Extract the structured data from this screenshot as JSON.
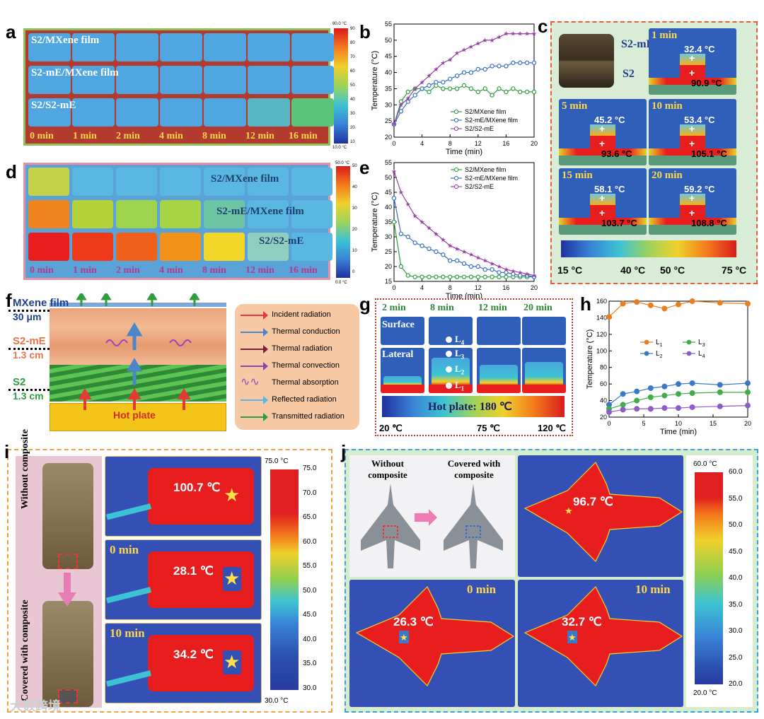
{
  "panel_a": {
    "label": "a",
    "rows": [
      "S2/MXene film",
      "S2-mE/MXene film",
      "S2/S2-mE"
    ],
    "times": [
      "0 min",
      "1 min",
      "2 min",
      "4 min",
      "8 min",
      "12 min",
      "16 min"
    ],
    "scale_max": "90.0 °C",
    "scale_min": "10.0 °C",
    "scale_ticks": [
      "90",
      "80",
      "70",
      "60",
      "50",
      "40",
      "30",
      "20",
      "10"
    ]
  },
  "panel_d": {
    "label": "d",
    "rows": [
      "S2/MXene film",
      "S2-mE/MXene film",
      "S2/S2-mE"
    ],
    "times": [
      "0 min",
      "1 min",
      "2 min",
      "4 min",
      "8 min",
      "12 min",
      "16 min"
    ],
    "scale_max": "50.0 °C",
    "scale_min": "0.0 °C",
    "scale_ticks": [
      "50",
      "40",
      "30",
      "20",
      "10",
      "0"
    ]
  },
  "panel_c": {
    "label": "c",
    "sample_top": "S2-mE",
    "sample_bottom": "S2",
    "cells": [
      {
        "time": "1 min",
        "top": "32.4 °C",
        "bottom": "90.9 °C"
      },
      {
        "time": "5 min",
        "top": "45.2 °C",
        "bottom": "93.6 °C"
      },
      {
        "time": "10 min",
        "top": "53.4 °C",
        "bottom": "105.1 °C"
      },
      {
        "time": "15 min",
        "top": "58.1 °C",
        "bottom": "103.7 °C"
      },
      {
        "time": "20 min",
        "top": "59.2 °C",
        "bottom": "108.8 °C"
      }
    ],
    "scale_labels": [
      "15 °C",
      "40 °C",
      "50 °C",
      "75 °C"
    ]
  },
  "panel_f": {
    "label": "f",
    "layers": [
      {
        "name": "MXene film",
        "thick": "30 μm"
      },
      {
        "name": "S2-mE",
        "thick": "1.3 cm"
      },
      {
        "name": "S2",
        "thick": "1.3 cm"
      }
    ],
    "hot_plate": "Hot plate",
    "legend": [
      {
        "text": "Incident radiation",
        "color": "#e53935"
      },
      {
        "text": "Thermal conduction",
        "color": "#4a86c8"
      },
      {
        "text": "Thermal radiation",
        "color": "#7b1f3f"
      },
      {
        "text": "Thermal convection",
        "color": "#8e44ad"
      },
      {
        "text": "Thermal absorption",
        "color": "#a040c0"
      },
      {
        "text": "Reflected radiation",
        "color": "#5ab4e5"
      },
      {
        "text": "Transmitted radiation",
        "color": "#2e9e3e"
      }
    ]
  },
  "panel_g": {
    "label": "g",
    "times": [
      "2 min",
      "8 min",
      "12 min",
      "20 min"
    ],
    "rows": [
      "Surface",
      "Lateral"
    ],
    "points": [
      "L",
      "L",
      "L",
      "L"
    ],
    "subs": [
      "4",
      "3",
      "2",
      "1"
    ],
    "plate": "Hot plate: 180 ℃",
    "scale_labels": [
      "20 ℃",
      "75 ℃",
      "120 ℃"
    ]
  },
  "panel_i": {
    "label": "i",
    "side_top": "Without composite",
    "side_bottom": "Covered with composite",
    "cells": [
      {
        "time": "",
        "temp": "100.7 ℃"
      },
      {
        "time": "0 min",
        "temp": "28.1 ℃"
      },
      {
        "time": "10 min",
        "temp": "34.2 ℃"
      }
    ],
    "scale_max": "75.0 °C",
    "scale_min": "30.0 °C",
    "scale_ticks": [
      "75.0",
      "70.0",
      "65.0",
      "60.0",
      "55.0",
      "50.0",
      "45.0",
      "40.0",
      "35.0",
      "30.0"
    ]
  },
  "panel_j": {
    "label": "j",
    "photo_left": "Without composite",
    "photo_right": "Covered with composite",
    "cells": [
      {
        "time": "",
        "temp": "96.7 ℃"
      },
      {
        "time": "0 min",
        "temp": "26.3 ℃"
      },
      {
        "time": "10 min",
        "temp": "32.7 ℃"
      }
    ],
    "scale_max": "60.0 °C",
    "scale_min": "20.0 °C",
    "scale_ticks": [
      "60.0",
      "55.0",
      "50.0",
      "45.0",
      "40.0",
      "35.0",
      "30.0",
      "25.0",
      "20.0"
    ]
  },
  "watermark": "大数跨境",
  "chart_data": [
    {
      "id": "b",
      "type": "line",
      "xlabel": "Time (min)",
      "ylabel": "Temperature (°C)",
      "xlim": [
        0,
        20
      ],
      "ylim": [
        20,
        55
      ],
      "xticks": [
        0,
        4,
        8,
        12,
        16,
        20
      ],
      "yticks": [
        20,
        25,
        30,
        35,
        40,
        45,
        50,
        55
      ],
      "x": [
        0,
        1,
        2,
        3,
        4,
        5,
        6,
        7,
        8,
        9,
        10,
        11,
        12,
        13,
        14,
        15,
        16,
        17,
        18,
        19,
        20
      ],
      "series": [
        {
          "name": "S2/MXene film",
          "color": "#2e9e3e",
          "values": [
            24,
            31,
            34,
            35,
            35,
            34,
            36,
            35,
            35,
            35,
            36,
            35,
            34,
            35,
            33,
            35,
            34,
            35,
            34,
            34,
            34
          ]
        },
        {
          "name": "S2-mE/MXene film",
          "color": "#3a6fc4",
          "values": [
            24,
            28,
            31,
            33,
            35,
            36,
            37,
            37,
            38,
            39,
            40,
            40,
            41,
            41,
            42,
            42,
            42,
            43,
            43,
            43,
            43
          ]
        },
        {
          "name": "S2/S2-mE",
          "color": "#9b3fa8",
          "values": [
            24,
            30,
            32,
            35,
            37,
            39,
            41,
            43,
            44,
            46,
            47,
            48,
            49,
            50,
            50,
            51,
            52,
            52,
            52,
            52,
            52
          ]
        }
      ],
      "legend": "center-right"
    },
    {
      "id": "e",
      "type": "line",
      "xlabel": "Time (min)",
      "ylabel": "Temperature (°C)",
      "xlim": [
        0,
        20
      ],
      "ylim": [
        15,
        55
      ],
      "xticks": [
        0,
        4,
        8,
        12,
        16,
        20
      ],
      "yticks": [
        15,
        20,
        25,
        30,
        35,
        40,
        45,
        50,
        55
      ],
      "x": [
        0,
        1,
        2,
        3,
        4,
        5,
        6,
        7,
        8,
        9,
        10,
        11,
        12,
        13,
        14,
        15,
        16,
        17,
        18,
        19,
        20
      ],
      "series": [
        {
          "name": "S2/MXene film",
          "color": "#2e9e3e",
          "values": [
            35,
            20,
            17,
            16.5,
            16.5,
            16.5,
            16.5,
            16.5,
            16.5,
            16.5,
            16.5,
            16.5,
            16.5,
            16.5,
            16.5,
            16.5,
            16.5,
            16.5,
            16.5,
            16.5,
            16.5
          ]
        },
        {
          "name": "S2-mE/MXene film",
          "color": "#3a6fc4",
          "values": [
            43,
            31,
            30,
            28,
            27,
            26,
            25,
            24,
            22,
            22,
            21,
            20,
            20,
            19,
            19,
            18,
            18,
            17.5,
            17,
            17,
            16.5
          ]
        },
        {
          "name": "S2/S2-mE",
          "color": "#9b3fa8",
          "values": [
            52,
            45,
            41,
            37,
            35,
            33,
            31,
            29,
            27,
            26,
            25,
            24,
            23,
            22,
            21,
            20,
            19,
            18.5,
            18,
            17.5,
            17
          ]
        }
      ],
      "legend": "top-right"
    },
    {
      "id": "h",
      "type": "line",
      "xlabel": "Time (min)",
      "ylabel": "Temperature (°C)",
      "xlim": [
        0,
        20
      ],
      "ylim": [
        20,
        160
      ],
      "xticks": [
        0,
        5,
        10,
        15,
        20
      ],
      "yticks": [
        20,
        40,
        60,
        80,
        100,
        120,
        140,
        160
      ],
      "x": [
        0,
        2,
        4,
        6,
        8,
        10,
        12,
        16,
        20
      ],
      "series": [
        {
          "name": "L",
          "sub": "1",
          "color": "#e67e22",
          "values": [
            141,
            157,
            159,
            155,
            151,
            156,
            160,
            158,
            157
          ]
        },
        {
          "name": "L",
          "sub": "2",
          "color": "#3a78c8",
          "values": [
            35,
            48,
            51,
            55,
            57,
            60,
            61,
            59,
            61
          ]
        },
        {
          "name": "L",
          "sub": "3",
          "color": "#3fae49",
          "values": [
            30,
            35,
            40,
            44,
            46,
            48,
            49,
            50,
            50
          ]
        },
        {
          "name": "L",
          "sub": "4",
          "color": "#8e5cc6",
          "values": [
            26,
            29,
            30,
            30,
            31,
            31,
            32,
            33,
            34
          ]
        }
      ],
      "legend": "upper-middle"
    }
  ]
}
